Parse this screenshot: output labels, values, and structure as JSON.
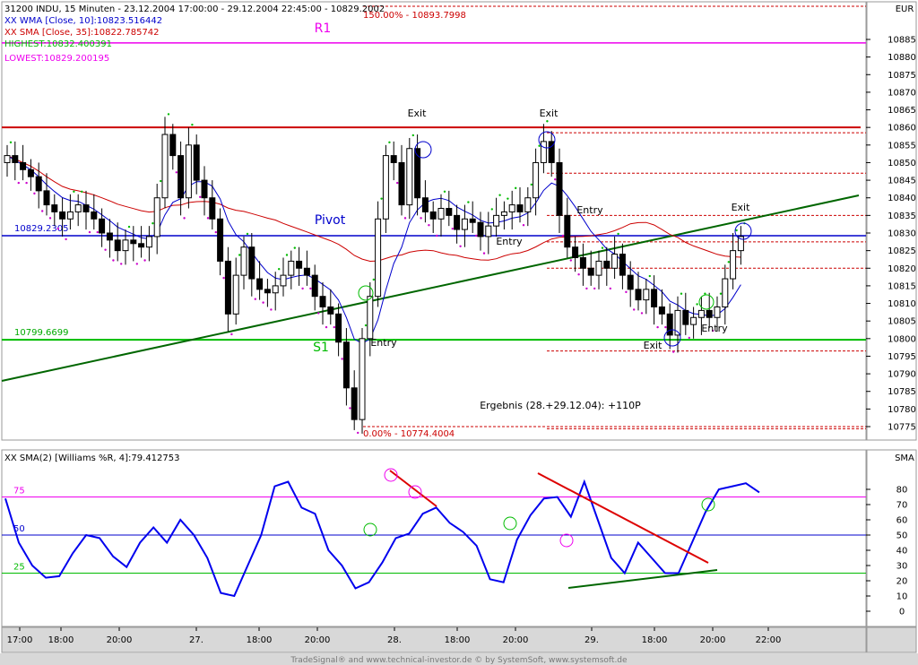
{
  "header": {
    "instrument": "31200  INDU, 15 Minuten - 23.12.2004 17:00:00 - 29.12.2004 22:45:00 - 10829.2002",
    "wma": "XX WMA [Close, 10]:10823.516442",
    "sma": "XX SMA [Close, 35]:10822.785742",
    "highest": "HIGHEST:10832.400391",
    "lowest": "LOWEST:10829.200195"
  },
  "price_axis_title": "EUR",
  "osc_axis_title": "SMA",
  "osc_title": "XX SMA(2) [Williams %R, 4]:79.412753",
  "footer": "TradeSignal® and www.technical-investor.de © by SystemSoft, www.systemsoft.de",
  "colors": {
    "wma": "#0000cc",
    "sma": "#cc0000",
    "pivot": "#0000cc",
    "r1": "#cc0000",
    "s1": "#00bb00",
    "fib": "#cc0000",
    "trend": "#006600",
    "magenta": "#ee00ee",
    "osc": "#0000ee"
  },
  "chart_data": [
    {
      "type": "candlestick",
      "title": "",
      "time_ticks": [
        "17:00",
        "18:00",
        "20:00",
        "27.",
        "18:00",
        "20:00",
        "28.",
        "18:00",
        "20:00",
        "29.",
        "18:00",
        "20:00",
        "22:00"
      ],
      "ylim": [
        10770,
        10890
      ],
      "y_ticks": [
        10775,
        10780,
        10785,
        10790,
        10795,
        10800,
        10805,
        10810,
        10815,
        10820,
        10825,
        10830,
        10835,
        10840,
        10845,
        10850,
        10855,
        10860,
        10865,
        10870,
        10875,
        10880,
        10885
      ],
      "close": [
        10852,
        10850,
        10848,
        10846,
        10842,
        10838,
        10836,
        10834,
        10836,
        10838,
        10836,
        10834,
        10830,
        10828,
        10825,
        10828,
        10827,
        10826,
        10829,
        10840,
        10858,
        10852,
        10840,
        10855,
        10845,
        10840,
        10834,
        10822,
        10807,
        10818,
        10826,
        10817,
        10814,
        10813,
        10815,
        10818,
        10822,
        10820,
        10818,
        10812,
        10809,
        10807,
        10799,
        10786,
        10777,
        10800,
        10812,
        10834,
        10852,
        10850,
        10838,
        10854,
        10840,
        10836,
        10834,
        10837,
        10835,
        10831,
        10834,
        10833,
        10829,
        10832,
        10835,
        10836,
        10838,
        10836,
        10840,
        10850,
        10856,
        10850,
        10835,
        10826,
        10823,
        10820,
        10818,
        10822,
        10820,
        10824,
        10818,
        10814,
        10811,
        10814,
        10809,
        10807,
        10801,
        10808,
        10804,
        10806,
        10808,
        10806,
        10809,
        10817,
        10825,
        10829
      ],
      "high_label": "150.00% - 10893.7998",
      "low_label": "0.00% - 10774.4004",
      "levels": [
        {
          "name": "R1",
          "value": 10860
        },
        {
          "name": "Pivot",
          "value": 10829.2305
        },
        {
          "name": "S1",
          "value": 10799.6699
        }
      ],
      "level_value_labels": [
        "10829.2305",
        "10799.6699"
      ],
      "magenta_level": 10884,
      "annotations": [
        "Exit",
        "Exit",
        "Entry",
        "Entry",
        "Exit",
        "Entry",
        "Exit",
        "Entry"
      ],
      "result_text": "Ergebnis (28.+29.12.04): +110P"
    },
    {
      "type": "line",
      "title": "XX SMA(2) [Williams %R, 4]:79.412753",
      "ylim": [
        -5,
        100
      ],
      "y_ticks": [
        0,
        10,
        20,
        30,
        40,
        50,
        60,
        70,
        80
      ],
      "level_labels": [
        "75",
        "50",
        "25"
      ],
      "levels": [
        75,
        50,
        25
      ],
      "values": [
        74,
        45,
        30,
        22,
        23,
        38,
        50,
        48,
        36,
        29,
        45,
        55,
        45,
        60,
        50,
        35,
        12,
        10,
        30,
        50,
        82,
        85,
        68,
        64,
        40,
        30,
        15,
        19,
        32,
        48,
        51,
        64,
        68,
        58,
        52,
        43,
        21,
        19,
        47,
        63,
        74,
        75,
        62,
        85,
        60,
        35,
        25,
        45,
        35,
        25,
        25,
        45,
        65,
        80,
        82,
        84,
        78
      ]
    }
  ]
}
